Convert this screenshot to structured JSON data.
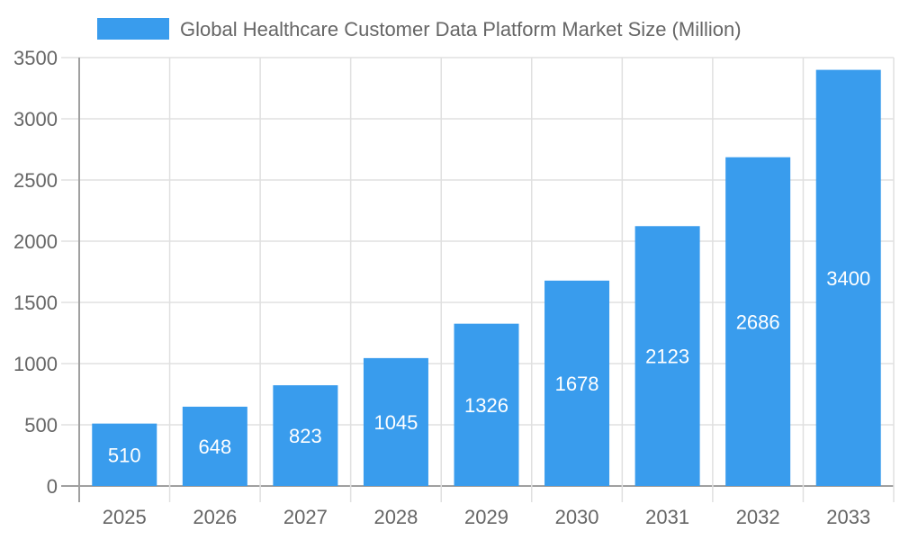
{
  "chart_data": {
    "type": "bar",
    "title": "",
    "xlabel": "",
    "ylabel": "",
    "categories": [
      "2025",
      "2026",
      "2027",
      "2028",
      "2029",
      "2030",
      "2031",
      "2032",
      "2033"
    ],
    "series": [
      {
        "name": "Global Healthcare Customer Data Platform Market Size (Million)",
        "values": [
          510,
          648,
          823,
          1045,
          1326,
          1678,
          2123,
          2686,
          3400
        ]
      }
    ],
    "ylim": [
      0,
      3500
    ],
    "yticks": [
      0,
      500,
      1000,
      1500,
      2000,
      2500,
      3000,
      3500
    ],
    "grid": true,
    "legend_position": "top",
    "data_labels": "inside-center",
    "colors": {
      "bar": "#399CED",
      "grid": "#E0E0E0",
      "axis": "#A0A0A0",
      "text": "#666666",
      "label": "#FFFFFF"
    }
  }
}
